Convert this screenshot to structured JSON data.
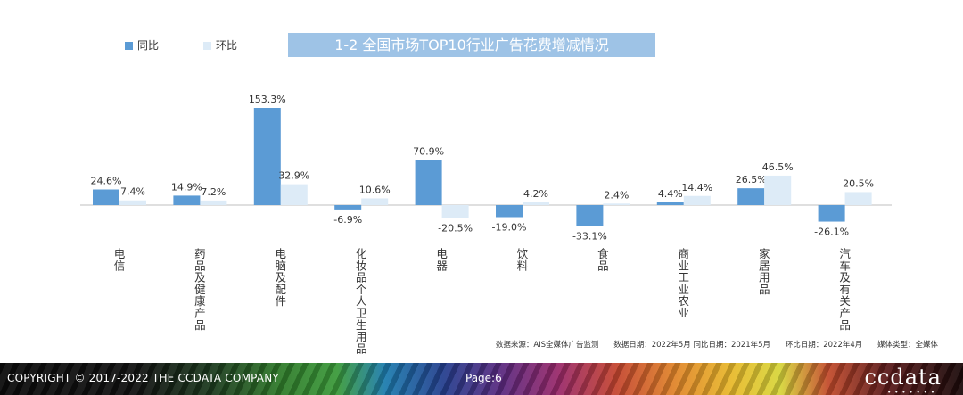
{
  "header": {
    "title": "1-2 全国市场TOP10行业广告花费增减情况"
  },
  "legend": [
    {
      "label": "同比",
      "color": "#5b9bd5"
    },
    {
      "label": "环比",
      "color": "#ddebf7"
    }
  ],
  "chart_data": {
    "type": "bar",
    "title": "1-2 全国市场TOP10行业广告花费增减情况",
    "categories": [
      "电信",
      "药品及健康产品",
      "电脑及配件",
      "化妆品个人卫生用品",
      "电器",
      "饮料",
      "食品",
      "商业工业农业",
      "家居用品",
      "汽车及有关产品"
    ],
    "series": [
      {
        "name": "同比",
        "values": [
          24.6,
          14.9,
          153.3,
          -6.9,
          70.9,
          -19.0,
          -33.1,
          4.4,
          26.5,
          -26.1
        ]
      },
      {
        "name": "环比",
        "values": [
          7.4,
          7.2,
          32.9,
          10.6,
          -20.5,
          4.2,
          2.4,
          14.4,
          46.5,
          20.5
        ]
      }
    ],
    "value_labels": [
      [
        "24.6%",
        "14.9%",
        "153.3%",
        "-6.9%",
        "70.9%",
        "-19.0%",
        "-33.1%",
        "4.4%",
        "26.5%",
        "-26.1%"
      ],
      [
        "7.4%",
        "7.2%",
        "32.9%",
        "10.6%",
        "-20.5%",
        "4.2%",
        "2.4%",
        "14.4%",
        "46.5%",
        "20.5%"
      ]
    ],
    "colors": [
      "#5b9bd5",
      "#ddebf7"
    ],
    "unit": "%",
    "legend_position": "top-left",
    "grid": false
  },
  "notes": [
    "数据来源：AIS全媒体广告监测",
    "数据日期：2022年5月  同比日期：2021年5月",
    "环比日期：2022年4月",
    "媒体类型：全媒体"
  ],
  "footer": {
    "copyright": "COPYRIGHT © 2017-2022 THE CCDATA COMPANY",
    "page": "Page:6",
    "logo": "ccdata"
  }
}
